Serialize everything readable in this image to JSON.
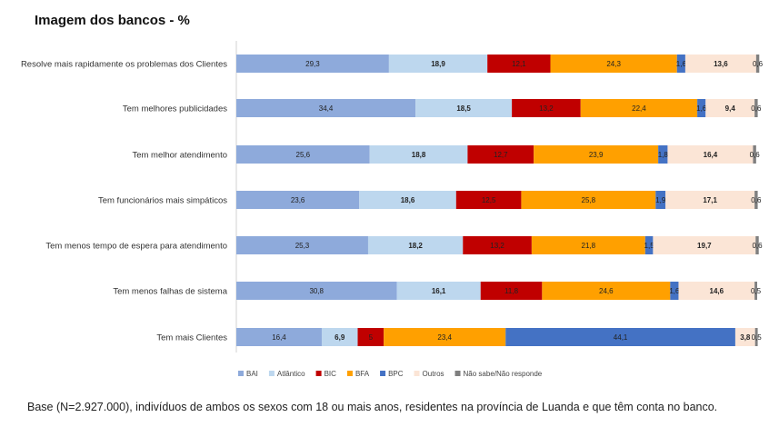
{
  "title": "Imagem dos bancos - %",
  "footnote": "Base (N=2.927.000), indivíduos de ambos os sexos com 18 ou mais anos, residentes na província de Luanda e que têm conta no banco.",
  "chart_data": {
    "type": "bar",
    "orientation": "horizontal",
    "stacked": true,
    "title": "Imagem dos bancos - %",
    "xlim": [
      0,
      100
    ],
    "legend_position": "bottom",
    "categories": [
      "Resolve mais rapidamente os problemas dos Clientes",
      "Tem melhores publicidades",
      "Tem melhor atendimento",
      "Tem funcionários mais simpáticos",
      "Tem menos tempo de espera para atendimento",
      "Tem menos falhas de sistema",
      "Tem mais Clientes"
    ],
    "series": [
      {
        "name": "BAI",
        "color": "#8eaadb",
        "values": [
          29.3,
          34.4,
          25.6,
          23.6,
          25.3,
          30.8,
          16.4
        ],
        "labels": [
          "29,3",
          "34,4",
          "25,6",
          "23,6",
          "25,3",
          "30,8",
          "16,4"
        ]
      },
      {
        "name": "Atlântico",
        "color": "#bdd7ee",
        "values": [
          18.9,
          18.5,
          18.8,
          18.6,
          18.2,
          16.1,
          6.9
        ],
        "labels": [
          "18,9",
          "18,5",
          "18,8",
          "18,6",
          "18,2",
          "16,1",
          "6,9"
        ]
      },
      {
        "name": "BIC",
        "color": "#c00000",
        "values": [
          12.1,
          13.2,
          12.7,
          12.5,
          13.2,
          11.8,
          5
        ],
        "labels": [
          "12,1",
          "13,2",
          "12,7",
          "12,5",
          "13,2",
          "11,8",
          "5"
        ]
      },
      {
        "name": "BFA",
        "color": "#ffa000",
        "values": [
          24.3,
          22.4,
          23.9,
          25.8,
          21.8,
          24.6,
          23.4
        ],
        "labels": [
          "24,3",
          "22,4",
          "23,9",
          "25,8",
          "21,8",
          "24,6",
          "23,4"
        ]
      },
      {
        "name": "BPC",
        "color": "#4472c4",
        "values": [
          1.6,
          1.6,
          1.8,
          1.9,
          1.5,
          1.6,
          44.1
        ],
        "labels": [
          "1,6",
          "1,6",
          "1,8",
          "1,9",
          "1,5",
          "1,6",
          "44,1"
        ]
      },
      {
        "name": "Outros",
        "color": "#fbe5d6",
        "values": [
          13.6,
          9.4,
          16.4,
          17.1,
          19.7,
          14.6,
          3.8
        ],
        "labels": [
          "13,6",
          "9,4",
          "16,4",
          "17,1",
          "19,7",
          "14,6",
          "3,8"
        ]
      },
      {
        "name": "Não sabe/Não responde",
        "color": "#7f7f7f",
        "values": [
          0.6,
          0.6,
          0.6,
          0.6,
          0.6,
          0.5,
          0.5
        ],
        "labels": [
          "0,6",
          "0,6",
          "0,6",
          "0,6",
          "0,6",
          "0,5",
          "0,5"
        ]
      }
    ]
  }
}
